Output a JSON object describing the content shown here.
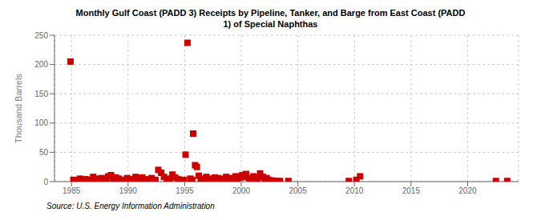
{
  "chart_data": {
    "type": "scatter",
    "title": "Monthly Gulf Coast (PADD 3) Receipts by Pipeline, Tanker, and Barge from East Coast (PADD\n1) of Special Naphthas",
    "ylabel": "Thousand Barrels",
    "source": "Source: U.S. Energy Information Administration",
    "color": "#cc0000",
    "marker": "square",
    "grid": true,
    "xlim": [
      1983.5,
      2024.5
    ],
    "xticks": [
      1985,
      1990,
      1995,
      2000,
      2005,
      2010,
      2015,
      2020
    ],
    "ylim": [
      0,
      250
    ],
    "yticks": [
      0,
      50,
      100,
      150,
      200,
      250
    ],
    "x": [
      1984.92,
      1985.17,
      1985.5,
      1985.75,
      1985.92,
      1986.25,
      1986.5,
      1986.67,
      1986.92,
      1987.17,
      1987.42,
      1987.67,
      1987.92,
      1988.08,
      1988.25,
      1988.5,
      1988.67,
      1988.92,
      1989.17,
      1989.42,
      1989.67,
      1989.92,
      1990.17,
      1990.42,
      1990.67,
      1990.92,
      1991.08,
      1991.25,
      1991.5,
      1991.75,
      1992.08,
      1992.42,
      1992.67,
      1992.92,
      1993.17,
      1993.42,
      1993.67,
      1993.92,
      1994.17,
      1994.42,
      1994.67,
      1994.92,
      1995.08,
      1995.25,
      1995.5,
      1995.67,
      1995.75,
      1995.92,
      1996.08,
      1996.25,
      1996.42,
      1996.67,
      1996.92,
      1997.17,
      1997.42,
      1997.67,
      1997.92,
      1998.08,
      1998.25,
      1998.5,
      1998.67,
      1998.92,
      1999.08,
      1999.25,
      1999.5,
      1999.67,
      1999.92,
      2000.08,
      2000.25,
      2000.42,
      2000.67,
      2000.92,
      2001.08,
      2001.25,
      2001.42,
      2001.67,
      2001.92,
      2002.08,
      2002.25,
      2002.42,
      2002.67,
      2002.92,
      2003.17,
      2003.42,
      2004.17,
      2009.5,
      2010.17,
      2010.5,
      2022.5,
      2023.5
    ],
    "values": [
      205,
      3,
      2,
      5,
      2,
      4,
      1,
      3,
      8,
      5,
      2,
      6,
      3,
      4,
      9,
      11,
      4,
      7,
      5,
      3,
      2,
      6,
      4,
      2,
      8,
      5,
      3,
      7,
      2,
      4,
      6,
      3,
      20,
      15,
      8,
      5,
      3,
      12,
      7,
      4,
      2,
      3,
      46,
      237,
      5,
      3,
      82,
      28,
      25,
      10,
      5,
      3,
      8,
      5,
      4,
      7,
      6,
      3,
      5,
      2,
      8,
      4,
      6,
      3,
      9,
      5,
      7,
      11,
      8,
      13,
      6,
      5,
      9,
      7,
      5,
      14,
      8,
      4,
      6,
      3,
      2,
      1,
      1,
      1,
      1,
      1,
      3,
      9,
      1,
      1
    ]
  }
}
